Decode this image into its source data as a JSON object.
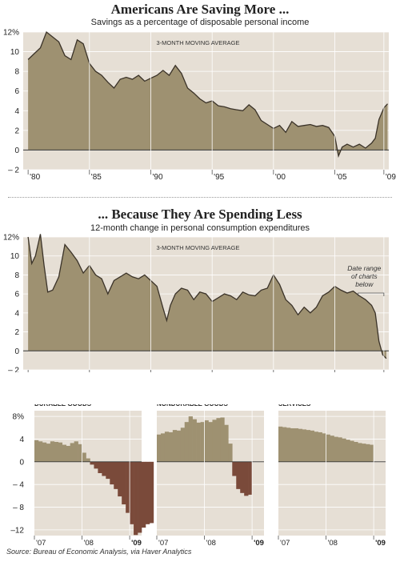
{
  "chart1": {
    "title": "Americans Are Saving More ...",
    "subtitle": "Savings as a percentage of disposable personal income",
    "annotation": "3-MONTH MOVING AVERAGE"
  },
  "chart2": {
    "title": "... Because They Are Spending Less",
    "subtitle": "12-month change in personal consumption expenditures",
    "annotation": "3-MONTH MOVING AVERAGE",
    "range_note": "Date range of charts below"
  },
  "source": "Source: Bureau of Economic Analysis, via Haver Analytics",
  "colors": {
    "area": "#9e9171",
    "neg": "#7a4a3a",
    "panel": "#e6dfd5",
    "line": "#3a3228"
  },
  "chart_data": [
    {
      "type": "area",
      "title": "Americans Are Saving More ...",
      "subtitle": "Savings as a percentage of disposable personal income",
      "x_ticks": [
        "'80",
        "'85",
        "'90",
        "'95",
        "'00",
        "'05",
        "'09"
      ],
      "y_ticks": [
        "12%",
        "10",
        "8",
        "6",
        "4",
        "2",
        "0",
        "– 2"
      ],
      "ylim": [
        -2,
        12
      ],
      "xlim": [
        1979.6,
        2009.4
      ],
      "x": [
        1980.0,
        1980.5,
        1981.0,
        1981.5,
        1982.0,
        1982.5,
        1983.0,
        1983.5,
        1984.0,
        1984.5,
        1985.0,
        1985.5,
        1986.0,
        1986.5,
        1987.0,
        1987.5,
        1988.0,
        1988.5,
        1989.0,
        1989.5,
        1990.0,
        1990.5,
        1991.0,
        1991.5,
        1992.0,
        1992.5,
        1993.0,
        1993.5,
        1994.0,
        1994.5,
        1995.0,
        1995.5,
        1996.0,
        1996.5,
        1997.0,
        1997.5,
        1998.0,
        1998.5,
        1999.0,
        1999.5,
        2000.0,
        2000.5,
        2001.0,
        2001.5,
        2002.0,
        2002.5,
        2003.0,
        2003.5,
        2004.0,
        2004.5,
        2005.0,
        2005.3,
        2005.6,
        2006.0,
        2006.5,
        2007.0,
        2007.5,
        2008.0,
        2008.3,
        2008.6,
        2009.0,
        2009.3
      ],
      "y": [
        9.2,
        9.8,
        10.4,
        12.0,
        11.5,
        11.0,
        9.6,
        9.2,
        11.2,
        10.8,
        8.8,
        8.0,
        7.6,
        6.9,
        6.3,
        7.2,
        7.4,
        7.2,
        7.6,
        7.0,
        7.3,
        7.6,
        8.1,
        7.6,
        8.6,
        7.8,
        6.3,
        5.8,
        5.2,
        4.8,
        5.0,
        4.5,
        4.4,
        4.2,
        4.1,
        4.0,
        4.6,
        4.1,
        3.0,
        2.6,
        2.2,
        2.5,
        1.8,
        2.9,
        2.4,
        2.5,
        2.6,
        2.4,
        2.5,
        2.3,
        1.4,
        -0.6,
        0.3,
        0.6,
        0.3,
        0.6,
        0.2,
        0.7,
        1.2,
        3.1,
        4.3,
        4.7
      ]
    },
    {
      "type": "area",
      "title": "... Because They Are Spending Less",
      "subtitle": "12-month change in personal consumption expenditures",
      "x_ticks": [
        "'80",
        "'85",
        "'90",
        "'95",
        "'00",
        "'05",
        "'09"
      ],
      "y_ticks": [
        "12%",
        "10",
        "8",
        "6",
        "4",
        "2",
        "0",
        "– 2"
      ],
      "ylim": [
        -2,
        12
      ],
      "xlim": [
        1979.6,
        2009.4
      ],
      "x": [
        1980.0,
        1980.3,
        1980.6,
        1981.0,
        1981.3,
        1981.6,
        1982.0,
        1982.5,
        1983.0,
        1983.5,
        1984.0,
        1984.5,
        1985.0,
        1985.5,
        1986.0,
        1986.5,
        1987.0,
        1987.5,
        1988.0,
        1988.5,
        1989.0,
        1989.5,
        1990.0,
        1990.5,
        1991.0,
        1991.3,
        1991.6,
        1992.0,
        1992.5,
        1993.0,
        1993.5,
        1994.0,
        1994.5,
        1995.0,
        1995.5,
        1996.0,
        1996.5,
        1997.0,
        1997.5,
        1998.0,
        1998.5,
        1999.0,
        1999.5,
        2000.0,
        2000.5,
        2001.0,
        2001.5,
        2002.0,
        2002.5,
        2003.0,
        2003.5,
        2004.0,
        2004.5,
        2005.0,
        2005.5,
        2006.0,
        2006.5,
        2007.0,
        2007.5,
        2008.0,
        2008.3,
        2008.6,
        2008.9,
        2009.2
      ],
      "y": [
        12.0,
        9.2,
        10.0,
        12.3,
        9.0,
        6.2,
        6.4,
        7.8,
        11.2,
        10.4,
        9.5,
        8.2,
        9.0,
        8.0,
        7.6,
        6.0,
        7.4,
        7.8,
        8.2,
        7.8,
        7.6,
        8.0,
        7.4,
        6.8,
        4.5,
        3.2,
        4.8,
        6.0,
        6.6,
        6.4,
        5.4,
        6.2,
        6.0,
        5.2,
        5.6,
        6.0,
        5.8,
        5.4,
        6.2,
        5.9,
        5.8,
        6.4,
        6.6,
        8.0,
        7.0,
        5.4,
        4.8,
        3.8,
        4.6,
        4.0,
        4.6,
        5.8,
        6.2,
        6.8,
        6.4,
        6.1,
        6.3,
        5.8,
        5.4,
        4.8,
        4.0,
        1.0,
        -0.4,
        -0.8
      ]
    },
    {
      "type": "bar",
      "title": "DURABLE GOODS",
      "x_ticks": [
        "'07",
        "'08",
        "'09"
      ],
      "y_ticks": [
        "8%",
        "4",
        "0",
        "– 4",
        "– 8",
        "–12"
      ],
      "ylim": [
        -13,
        9
      ],
      "values": [
        3.8,
        3.6,
        3.4,
        3.2,
        3.6,
        3.5,
        3.4,
        3.0,
        2.8,
        3.3,
        3.6,
        3.1,
        1.6,
        0.6,
        -0.5,
        -1.2,
        -2.0,
        -2.5,
        -3.0,
        -4.0,
        -4.8,
        -6.1,
        -7.5,
        -9.0,
        -11.0,
        -12.9,
        -12.5,
        -11.6,
        -11.0,
        -10.8
      ]
    },
    {
      "type": "bar",
      "title": "NONDURABLE GOODS",
      "x_ticks": [
        "'07",
        "'08",
        "'09"
      ],
      "ylim": [
        -13,
        9
      ],
      "values": [
        4.8,
        5.0,
        5.3,
        5.2,
        5.6,
        5.5,
        6.0,
        7.0,
        8.0,
        7.5,
        6.9,
        7.0,
        7.3,
        7.0,
        7.4,
        7.7,
        7.8,
        6.5,
        3.2,
        -2.5,
        -4.8,
        -5.5,
        -6.0,
        -5.8
      ]
    },
    {
      "type": "bar",
      "title": "SERVICES",
      "x_ticks": [
        "'07",
        "'08",
        "'09"
      ],
      "ylim": [
        -13,
        9
      ],
      "values": [
        6.2,
        6.1,
        6.0,
        5.9,
        5.9,
        5.8,
        5.7,
        5.6,
        5.5,
        5.3,
        5.2,
        5.0,
        4.8,
        4.6,
        4.4,
        4.3,
        4.1,
        3.9,
        3.7,
        3.5,
        3.3,
        3.2,
        3.1,
        3.0
      ]
    }
  ]
}
